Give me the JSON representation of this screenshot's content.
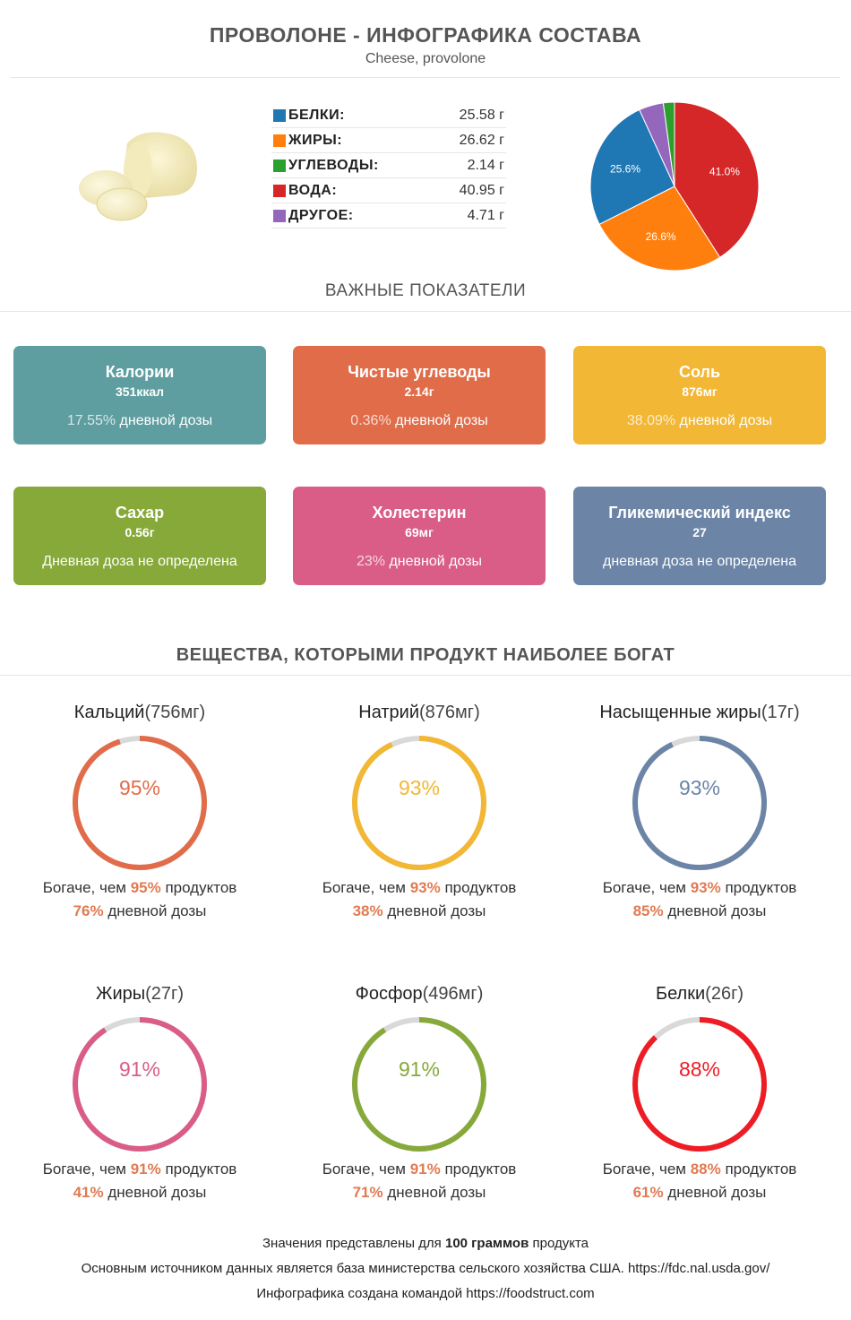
{
  "header": {
    "title": "ПРОВОЛОНЕ - ИНФОГРАФИКА СОСТАВА",
    "subtitle": "Cheese, provolone"
  },
  "macros": [
    {
      "label": "БЕЛКИ:",
      "value": "25.58 г",
      "color": "#1f77b4"
    },
    {
      "label": "ЖИРЫ:",
      "value": "26.62 г",
      "color": "#ff7f0e"
    },
    {
      "label": "УГЛЕВОДЫ:",
      "value": "2.14 г",
      "color": "#2ca02c"
    },
    {
      "label": "ВОДА:",
      "value": "40.95 г",
      "color": "#d62728"
    },
    {
      "label": "ДРУГОЕ:",
      "value": "4.71 г",
      "color": "#9467bd"
    }
  ],
  "chart_data": {
    "type": "pie",
    "categories": [
      "ВОДА",
      "ЖИРЫ",
      "БЕЛКИ",
      "ДРУГОЕ",
      "УГЛЕВОДЫ"
    ],
    "values": [
      40.95,
      26.62,
      25.58,
      4.71,
      2.14
    ],
    "colors": [
      "#d62728",
      "#ff7f0e",
      "#1f77b4",
      "#9467bd",
      "#2ca02c"
    ],
    "labels": [
      "41.0%",
      "26.6%",
      "25.6%",
      "",
      ""
    ]
  },
  "key_indicators": {
    "title": "ВАЖНЫЕ ПОКАЗАТЕЛИ",
    "cards": [
      {
        "name": "Калории",
        "value": "351ккал",
        "dose_pct": "17.55%",
        "dose_text": " дневной дозы",
        "color": "#5e9ea0"
      },
      {
        "name": "Чистые углеводы",
        "value": "2.14г",
        "dose_pct": "0.36%",
        "dose_text": " дневной дозы",
        "color": "#e06c4a"
      },
      {
        "name": "Соль",
        "value": "876мг",
        "dose_pct": "38.09%",
        "dose_text": " дневной дозы",
        "color": "#f2b734"
      },
      {
        "name": "Сахар",
        "value": "0.56г",
        "dose_pct": "",
        "dose_text": "Дневная доза не определена",
        "color": "#86a93a"
      },
      {
        "name": "Холестерин",
        "value": "69мг",
        "dose_pct": "23%",
        "dose_text": " дневной дозы",
        "color": "#d95d86"
      },
      {
        "name": "Гликемический индекс",
        "value": "27",
        "dose_pct": "",
        "dose_text": "дневная доза не определена",
        "color": "#6c84a6"
      }
    ]
  },
  "rich_in": {
    "title": "ВЕЩЕСТВА, КОТОРЫМИ ПРОДУКТ НАИБОЛЕЕ БОГАТ",
    "rich_prefix": "Богаче, чем ",
    "rich_suffix": " продуктов",
    "daily_suffix": " дневной дозы",
    "items": [
      {
        "name": "Кальций",
        "amount": "(756мг)",
        "percent": 95,
        "percent_label": "95%",
        "rich_pct": "95%",
        "daily_pct": "76%",
        "color": "#e06c4a"
      },
      {
        "name": "Натрий",
        "amount": "(876мг)",
        "percent": 93,
        "percent_label": "93%",
        "rich_pct": "93%",
        "daily_pct": "38%",
        "color": "#f2b734"
      },
      {
        "name": "Насыщенные жиры",
        "amount": "(17г)",
        "percent": 93,
        "percent_label": "93%",
        "rich_pct": "93%",
        "daily_pct": "85%",
        "color": "#6c84a6"
      },
      {
        "name": "Жиры",
        "amount": "(27г)",
        "percent": 91,
        "percent_label": "91%",
        "rich_pct": "91%",
        "daily_pct": "41%",
        "color": "#d95d86"
      },
      {
        "name": "Фосфор",
        "amount": "(496мг)",
        "percent": 91,
        "percent_label": "91%",
        "rich_pct": "91%",
        "daily_pct": "71%",
        "color": "#86a93a"
      },
      {
        "name": "Белки",
        "amount": "(26г)",
        "percent": 88,
        "percent_label": "88%",
        "rich_pct": "88%",
        "daily_pct": "61%",
        "color": "#ee1c24"
      }
    ]
  },
  "footer": {
    "line1_pre": "Значения представлены для ",
    "line1_bold": "100 граммов",
    "line1_post": " продукта",
    "line2": "Основным источником данных является база министерства сельского хозяйства США. https://fdc.nal.usda.gov/",
    "line3": "Инфографика создана командой https://foodstruct.com"
  }
}
